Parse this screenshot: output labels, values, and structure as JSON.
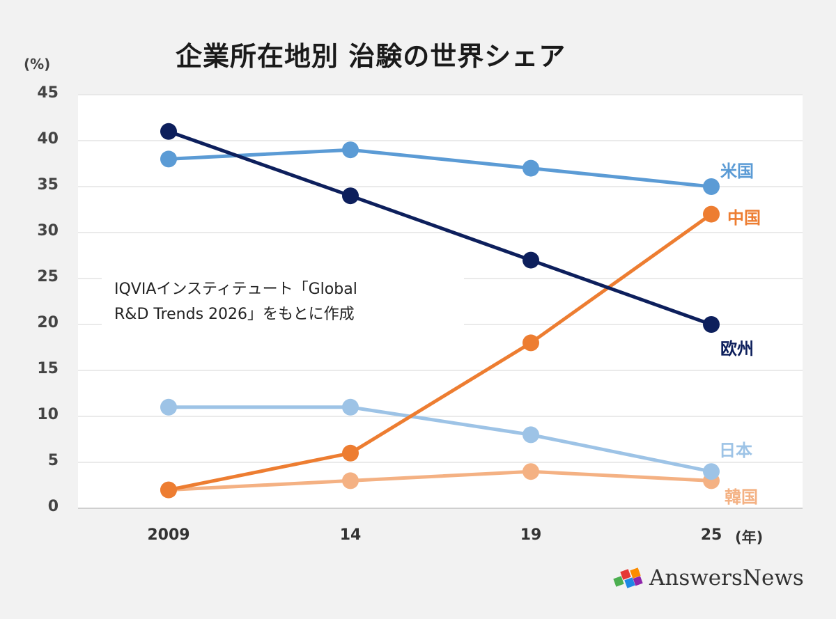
{
  "chart_data": {
    "type": "line",
    "title": "企業所在地別 治験の世界シェア",
    "ylabel": "(%)",
    "xlabel": "(年)",
    "ylim": [
      0,
      45
    ],
    "yticks": [
      0,
      5,
      10,
      15,
      20,
      25,
      30,
      35,
      40,
      45
    ],
    "categories": [
      "2009",
      "14",
      "19",
      "25"
    ],
    "grid": true,
    "series": [
      {
        "name": "米国",
        "values": [
          38,
          39,
          37,
          35
        ],
        "color": "#5b9bd5"
      },
      {
        "name": "中国",
        "values": [
          2,
          6,
          18,
          32
        ],
        "color": "#ed7d31"
      },
      {
        "name": "欧州",
        "values": [
          41,
          34,
          27,
          20
        ],
        "color": "#0d1f5c"
      },
      {
        "name": "日本",
        "values": [
          11,
          11,
          8,
          4
        ],
        "color": "#9dc3e6"
      },
      {
        "name": "韓国",
        "values": [
          2,
          3,
          4,
          3
        ],
        "color": "#f4b183"
      }
    ],
    "annotation": "IQVIAインスティテュート「Global R&D Trends 2026」をもとに作成",
    "annotation_lines": [
      "IQVIAインスティテュート「Global",
      "R&D Trends 2026」をもとに作成"
    ]
  },
  "branding": {
    "logo_text": "AnswersNews"
  }
}
